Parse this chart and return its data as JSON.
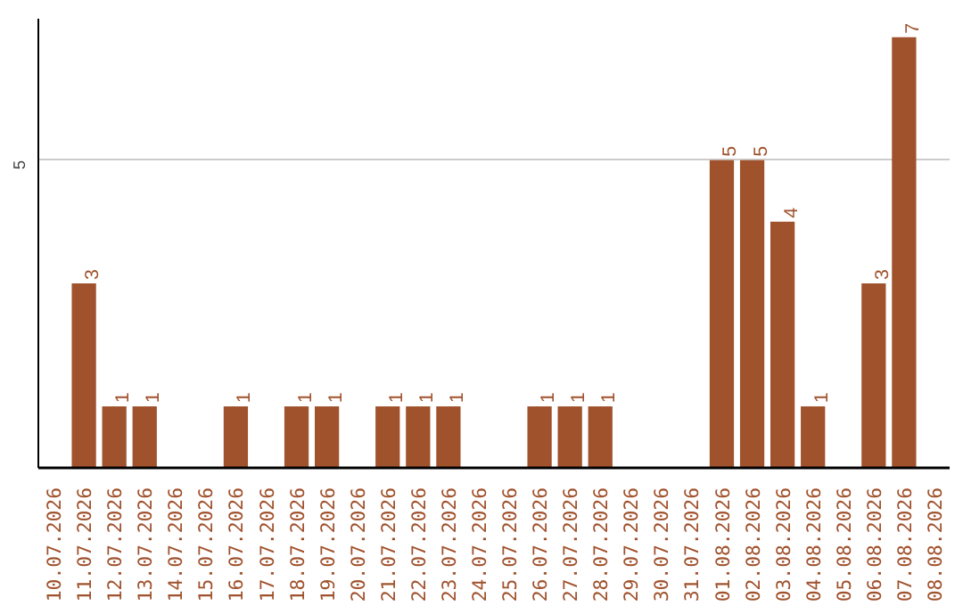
{
  "chart_data": {
    "type": "bar",
    "categories": [
      "10.07.2026",
      "11.07.2026",
      "12.07.2026",
      "13.07.2026",
      "14.07.2026",
      "15.07.2026",
      "16.07.2026",
      "17.07.2026",
      "18.07.2026",
      "19.07.2026",
      "20.07.2026",
      "21.07.2026",
      "22.07.2026",
      "23.07.2026",
      "24.07.2026",
      "25.07.2026",
      "26.07.2026",
      "27.07.2026",
      "28.07.2026",
      "29.07.2026",
      "30.07.2026",
      "31.07.2026",
      "01.08.2026",
      "02.08.2026",
      "03.08.2026",
      "04.08.2026",
      "05.08.2026",
      "06.08.2026",
      "07.08.2026",
      "08.08.2026"
    ],
    "values": [
      0,
      3,
      1,
      1,
      0,
      0,
      1,
      0,
      1,
      1,
      0,
      1,
      1,
      1,
      0,
      0,
      1,
      1,
      1,
      0,
      0,
      0,
      5,
      5,
      4,
      1,
      0,
      3,
      7,
      0
    ],
    "value_labels": [
      null,
      "3",
      "1",
      "1",
      null,
      null,
      "1",
      null,
      "1",
      "1",
      null,
      "1",
      "1",
      "1",
      null,
      null,
      "1",
      "1",
      "1",
      null,
      null,
      null,
      "5",
      "5",
      "4",
      "1",
      null,
      "3",
      "7",
      null
    ],
    "color": "#a0522d",
    "ylim": [
      0,
      7.3
    ],
    "yticks": [
      5
    ],
    "grid": "y"
  }
}
